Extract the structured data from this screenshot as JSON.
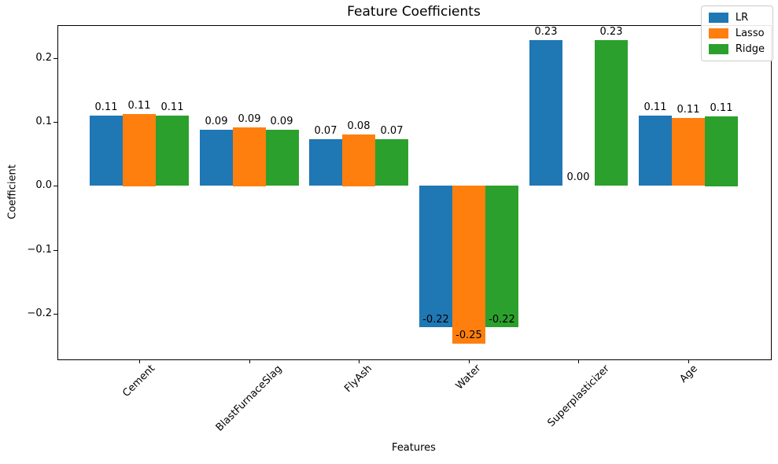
{
  "chart_data": {
    "type": "bar",
    "title": "Feature Coefficients",
    "xlabel": "Features",
    "ylabel": "Coefficient",
    "categories": [
      "Cement",
      "BlastFurnaceSlag",
      "FlyAsh",
      "Water",
      "Superplasticizer",
      "Age"
    ],
    "series": [
      {
        "name": "LR",
        "color": "#1f77b4",
        "values": [
          0.11,
          0.088,
          0.073,
          -0.222,
          0.228,
          0.11
        ],
        "labels": [
          "0.11",
          "0.09",
          "0.07",
          "-0.22",
          "0.23",
          "0.11"
        ]
      },
      {
        "name": "Lasso",
        "color": "#ff7f0e",
        "values": [
          0.113,
          0.092,
          0.081,
          -0.247,
          0.0,
          0.106
        ],
        "labels": [
          "0.11",
          "0.09",
          "0.08",
          "-0.25",
          "0.00",
          "0.11"
        ]
      },
      {
        "name": "Ridge",
        "color": "#2ca02c",
        "values": [
          0.11,
          0.088,
          0.073,
          -0.222,
          0.228,
          0.109
        ],
        "labels": [
          "0.11",
          "0.09",
          "0.07",
          "-0.22",
          "0.23",
          "0.11"
        ]
      }
    ],
    "bar_width": 0.3,
    "group_offsets": [
      -0.3,
      0,
      0.3
    ],
    "xlim": [
      -0.745,
      5.745
    ],
    "ylim": [
      -0.2704,
      0.2515
    ],
    "yticks": {
      "values": [
        0.2,
        0.1,
        0.0,
        -0.1,
        -0.2
      ],
      "labels": [
        "0.2",
        "0.1",
        "0.0",
        "−0.1",
        "−0.2"
      ]
    },
    "x_tick_rotation_deg": 45,
    "grid": false,
    "legend": {
      "position": "upper right",
      "entries": [
        "LR",
        "Lasso",
        "Ridge"
      ]
    }
  }
}
